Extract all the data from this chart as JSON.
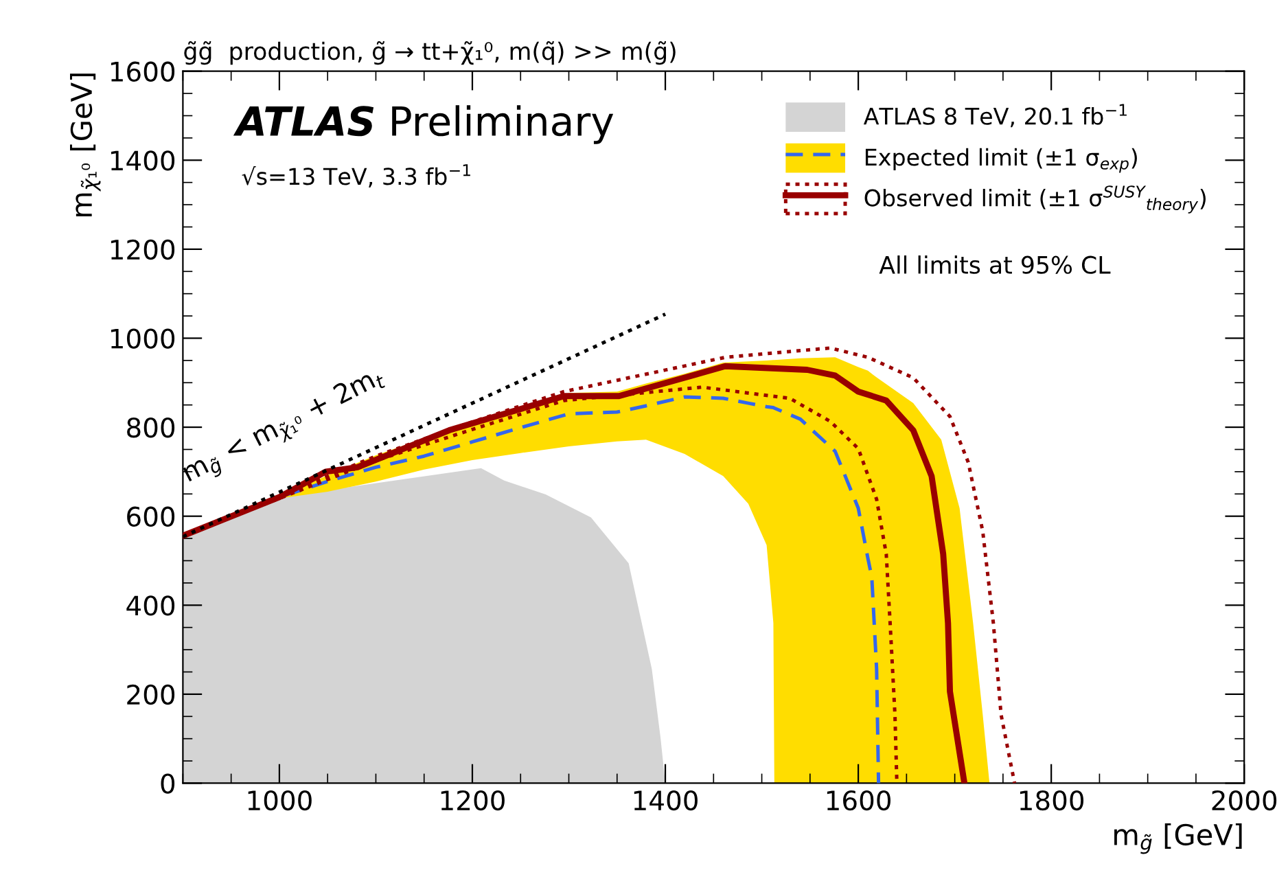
{
  "chart_data": {
    "type": "line",
    "title": "g̃g̃  production, g̃ → tt+χ̃₁⁰, m(q̃) >> m(g̃)",
    "xlabel": "m$_{g̃}$ [GeV]",
    "ylabel": "m$_{χ̃₁⁰}$ [GeV]",
    "xlim": [
      900,
      2000
    ],
    "xticks": [
      1000,
      1200,
      1400,
      1600,
      1800,
      2000
    ],
    "ylim": [
      0,
      1600
    ],
    "yticks": [
      0,
      200,
      400,
      600,
      800,
      1000,
      1200,
      1400,
      1600
    ],
    "grid": false,
    "legend": "top right",
    "series": [
      {
        "type": "area",
        "name": "ATLAS 8 TeV, 20.1 fb$^{−1}$",
        "color": "#d4d4d4",
        "x": [
          900,
          1000,
          1209,
          1233,
          1276,
          1323,
          1362,
          1386,
          1395,
          1400
        ],
        "values": [
          556,
          643,
          708,
          680,
          649,
          597,
          494,
          257,
          103,
          0
        ]
      },
      {
        "color": "#ffdd00",
        "x": [
          900,
          950,
          1000,
          1050,
          1100,
          1150,
          1200,
          1250,
          1300,
          1350,
          1380,
          1420,
          1460,
          1486,
          1505,
          1512,
          1513,
          1540,
          1576,
          1600,
          1610,
          1614,
          1619,
          1621,
          1657,
          1686,
          1705,
          1719,
          1729,
          1736
        ],
        "values": [
          null,
          null,
          null,
          null,
          null,
          null,
          null,
          null,
          null,
          null,
          null,
          null,
          null,
          null,
          null,
          null,
          null,
          null,
          null,
          null,
          null,
          null,
          null,
          null,
          null,
          null,
          null,
          null,
          null,
          null
        ],
        "upper": [
          556,
          600,
          643,
          692,
          737,
          775,
          808,
          843,
          877,
          880,
          898,
          920,
          945,
          948,
          950,
          951,
          951,
          955,
          957,
          935,
          927,
          920,
          912,
          909,
          854,
          772,
          618,
          360,
          154,
          0
        ],
        "lower": [
          556,
          600,
          640,
          655,
          678,
          705,
          726,
          742,
          757,
          768,
          772,
          740,
          690,
          628,
          535,
          360,
          0,
          0,
          0,
          0,
          0,
          0,
          0,
          0,
          0,
          0,
          0,
          0,
          0,
          0
        ]
      },
      {
        "name": "Expected limit (±1 σ$_{exp}$)",
        "color": "#3366ee",
        "line_style": "dashed",
        "x": [
          900,
          950,
          1000,
          1050,
          1100,
          1150,
          1200,
          1250,
          1300,
          1350,
          1380,
          1420,
          1460,
          1486,
          1505,
          1512,
          1513,
          1540,
          1576,
          1600,
          1610,
          1614,
          1619,
          1621
        ],
        "values": [
          556,
          600,
          643,
          678,
          710,
          735,
          767,
          799,
          830,
          834,
          848,
          868,
          865,
          854,
          846,
          844,
          843,
          818,
          746,
          618,
          505,
          463,
          257,
          0
        ]
      },
      {
        "name": "Observed limit (±1 σ$^{SUSY}$$_{theory}$)",
        "color": "#990000",
        "line_style": "solid",
        "x": [
          900,
          1000,
          1048,
          1081,
          1176,
          1295,
          1352,
          1462,
          1547,
          1576,
          1600,
          1629,
          1657,
          1676,
          1688,
          1693,
          1695,
          1710
        ],
        "values": [
          556,
          643,
          700,
          710,
          793,
          870,
          870,
          937,
          929,
          916,
          880,
          860,
          793,
          690,
          515,
          360,
          206,
          0
        ]
      },
      {
        "color": "#990000",
        "line_style": "dotted",
        "x": [
          900,
          1000,
          1100,
          1200,
          1295,
          1462,
          1571,
          1610,
          1657,
          1695,
          1714,
          1729,
          1740,
          1748,
          1762
        ],
        "values": [
          556,
          645,
          735,
          812,
          880,
          957,
          978,
          957,
          911,
          824,
          721,
          566,
          360,
          154,
          0
        ]
      },
      {
        "color": "#990000",
        "line_style": "dotted",
        "x": [
          900,
          1000,
          1100,
          1200,
          1295,
          1438,
          1529,
          1571,
          1600,
          1619,
          1629,
          1633,
          1638,
          1640
        ],
        "values": [
          556,
          640,
          725,
          795,
          860,
          890,
          865,
          813,
          752,
          638,
          515,
          360,
          154,
          0
        ]
      },
      {
        "color": "#000000",
        "line_style": "dotted",
        "x": [
          900,
          1400
        ],
        "values": [
          554,
          1054
        ]
      }
    ],
    "annotations": [
      "ATLAS",
      "Preliminary",
      "√s=13 TeV, 3.3 fb$^{−1}$",
      "All limits at 95% CL",
      "m$_{g̃}$ < m$_{χ̃₁⁰}$ + 2m$_{t}$"
    ]
  }
}
